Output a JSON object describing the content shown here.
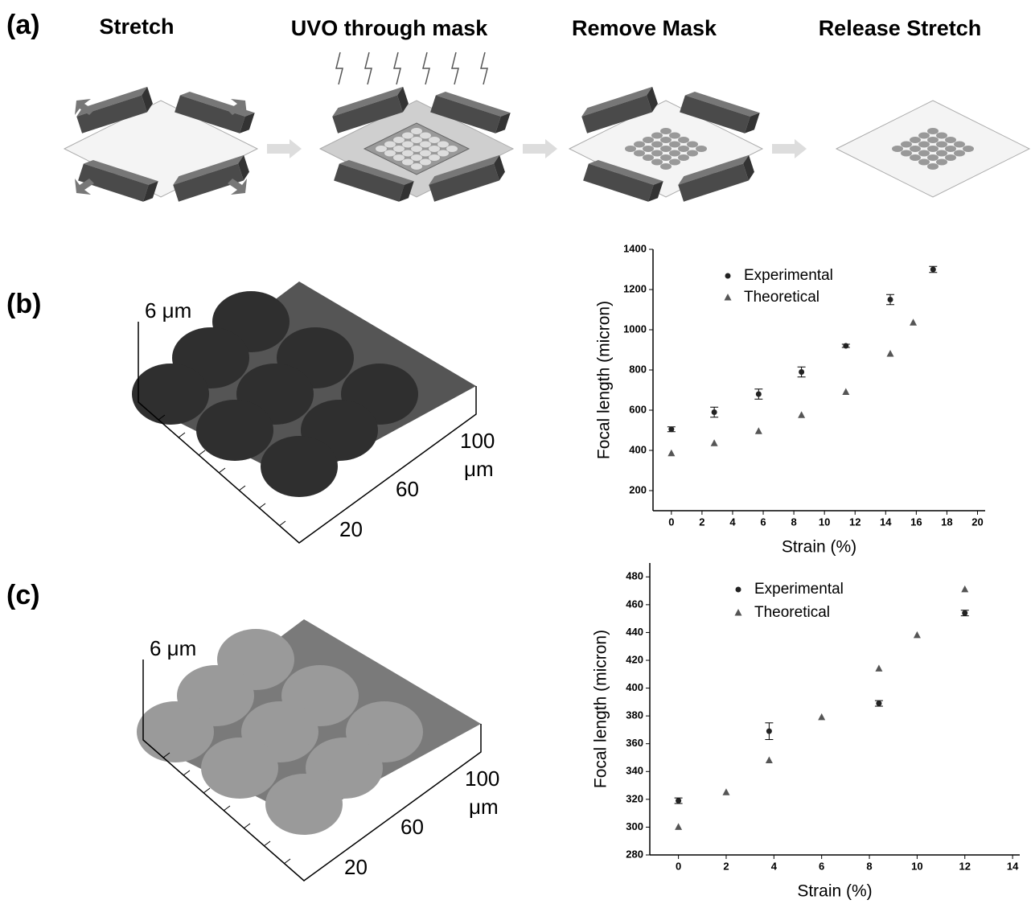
{
  "panel_labels": [
    "(a)",
    "(b)",
    "(c)"
  ],
  "steps": [
    "Stretch",
    "UVO through mask",
    "Remove Mask",
    "Release Stretch"
  ],
  "surfaces": [
    {
      "height": "6 μm",
      "x_labels": [
        "100",
        "μm",
        "60",
        "20"
      ]
    },
    {
      "height": "6 μm",
      "x_labels": [
        "100",
        "μm",
        "60",
        "20"
      ]
    }
  ],
  "chart_data": [
    {
      "type": "scatter",
      "x_label": "Strain (%)",
      "y_label": "Focal length (micron)",
      "xlim": [
        -1.2,
        20.5
      ],
      "ylim": [
        100,
        1400
      ],
      "xticks": [
        0,
        2,
        4,
        6,
        8,
        10,
        12,
        14,
        16,
        18,
        20
      ],
      "yticks": [
        200,
        400,
        600,
        800,
        1000,
        1200,
        1400
      ],
      "series": [
        {
          "name": "Experimental",
          "marker": "circle",
          "color": "#222222",
          "x": [
            0,
            2.8,
            5.7,
            8.5,
            11.4,
            14.3,
            17.1
          ],
          "values": [
            505,
            590,
            680,
            790,
            920,
            1150,
            1300
          ],
          "errors": [
            12,
            25,
            25,
            25,
            8,
            25,
            15
          ]
        },
        {
          "name": "Theoretical",
          "marker": "triangle",
          "color": "#555555",
          "x": [
            0,
            2.8,
            5.7,
            8.5,
            11.4,
            14.3,
            15.8
          ],
          "values": [
            385,
            435,
            495,
            575,
            690,
            880,
            1035
          ]
        }
      ]
    },
    {
      "type": "scatter",
      "x_label": "Strain (%)",
      "y_label": "Focal length (micron)",
      "xlim": [
        -1.2,
        14.3
      ],
      "ylim": [
        280,
        490
      ],
      "xticks": [
        0,
        2,
        4,
        6,
        8,
        10,
        12,
        14
      ],
      "yticks": [
        280,
        300,
        320,
        340,
        360,
        380,
        400,
        420,
        440,
        460,
        480
      ],
      "series": [
        {
          "name": "Experimental",
          "marker": "circle",
          "color": "#222222",
          "x": [
            0,
            3.8,
            8.4,
            12
          ],
          "values": [
            319,
            369,
            389,
            454
          ],
          "errors": [
            2,
            6,
            2,
            2
          ]
        },
        {
          "name": "Theoretical",
          "marker": "triangle",
          "color": "#555555",
          "x": [
            0,
            2,
            3.8,
            6,
            8.4,
            10,
            12
          ],
          "values": [
            300,
            325,
            348,
            379,
            414,
            438,
            471
          ]
        }
      ]
    }
  ]
}
